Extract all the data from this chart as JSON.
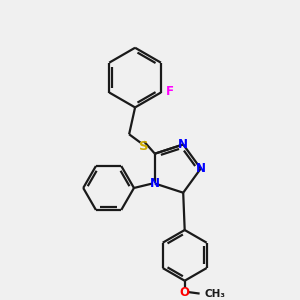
{
  "bg_color": "#f0f0f0",
  "bond_color": "#1a1a1a",
  "N_color": "#0000ff",
  "S_color": "#ccaa00",
  "O_color": "#ff0000",
  "F_color": "#ff00ff",
  "line_width": 1.6,
  "font_size": 8.5,
  "xlim": [
    0,
    10
  ],
  "ylim": [
    0,
    10
  ]
}
